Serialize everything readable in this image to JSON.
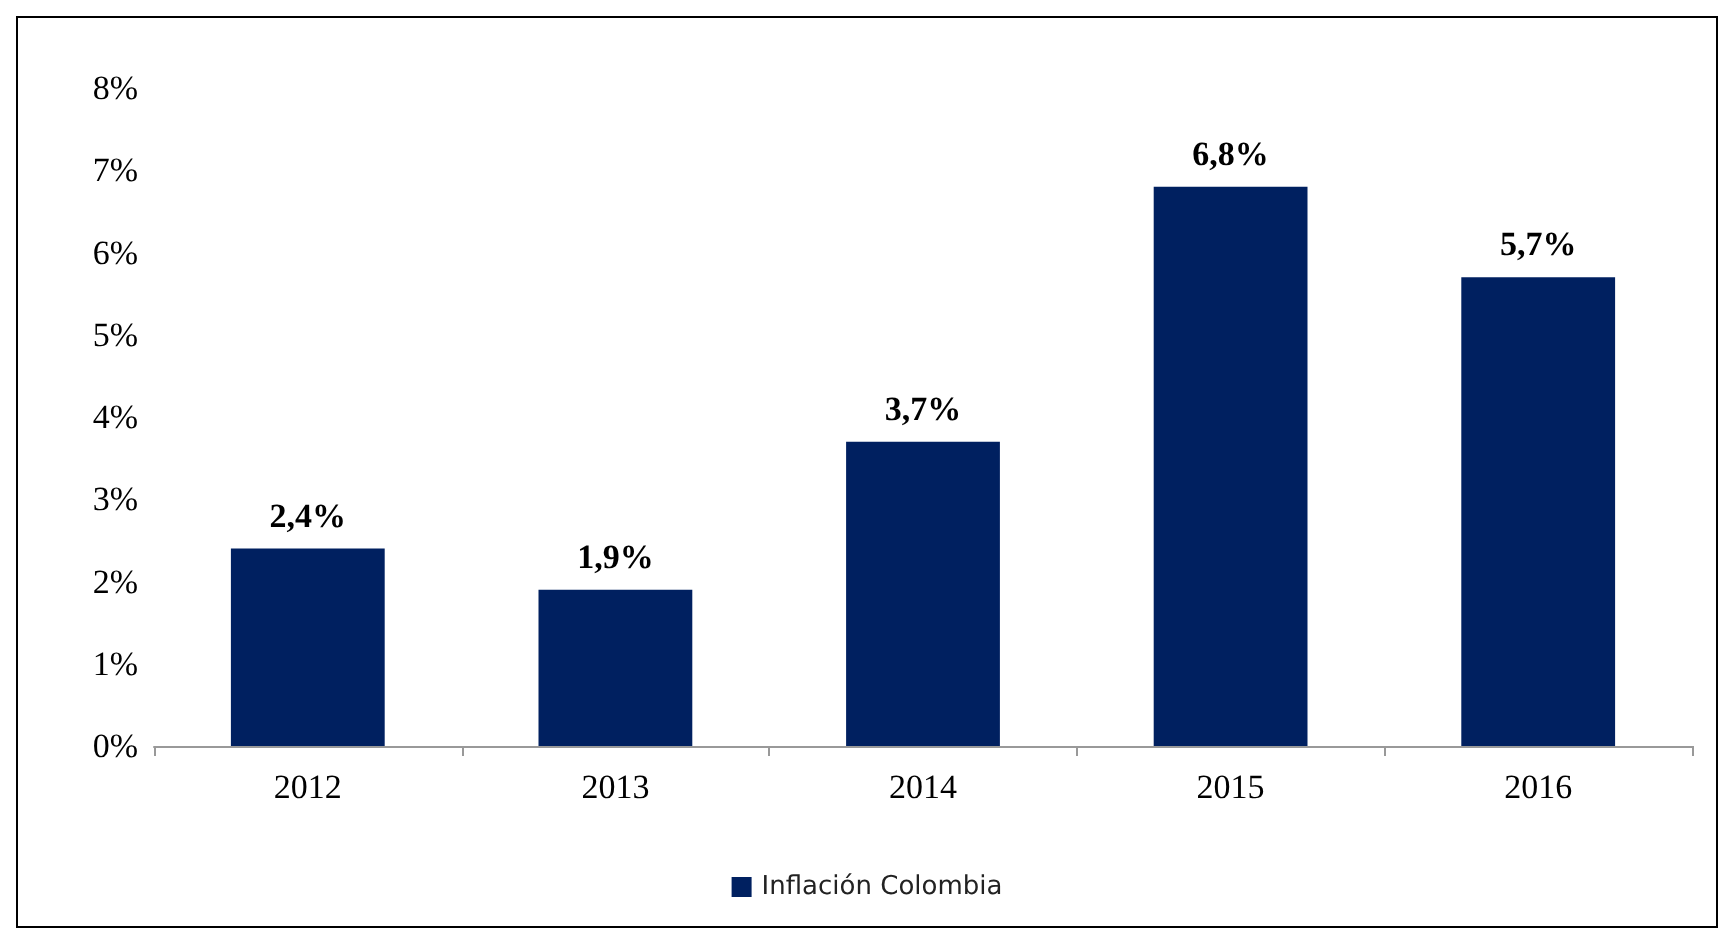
{
  "chart_data": {
    "type": "bar",
    "categories": [
      "2012",
      "2013",
      "2014",
      "2015",
      "2016"
    ],
    "series": [
      {
        "name": "Inflación Colombia",
        "color": "#002060",
        "values": [
          2.4,
          1.9,
          3.7,
          6.8,
          5.7
        ],
        "value_labels": [
          "2,4%",
          "1,9%",
          "3,7%",
          "6,8%",
          "5,7%"
        ]
      }
    ],
    "ylim": [
      0,
      8
    ],
    "yticks": [
      {
        "value": 0,
        "label": "0%"
      },
      {
        "value": 1,
        "label": "1%"
      },
      {
        "value": 2,
        "label": "2%"
      },
      {
        "value": 3,
        "label": "3%"
      },
      {
        "value": 4,
        "label": "4%"
      },
      {
        "value": 5,
        "label": "5%"
      },
      {
        "value": 6,
        "label": "6%"
      },
      {
        "value": 7,
        "label": "7%"
      },
      {
        "value": 8,
        "label": "8%"
      }
    ],
    "grid": false,
    "legend": "bottom"
  }
}
